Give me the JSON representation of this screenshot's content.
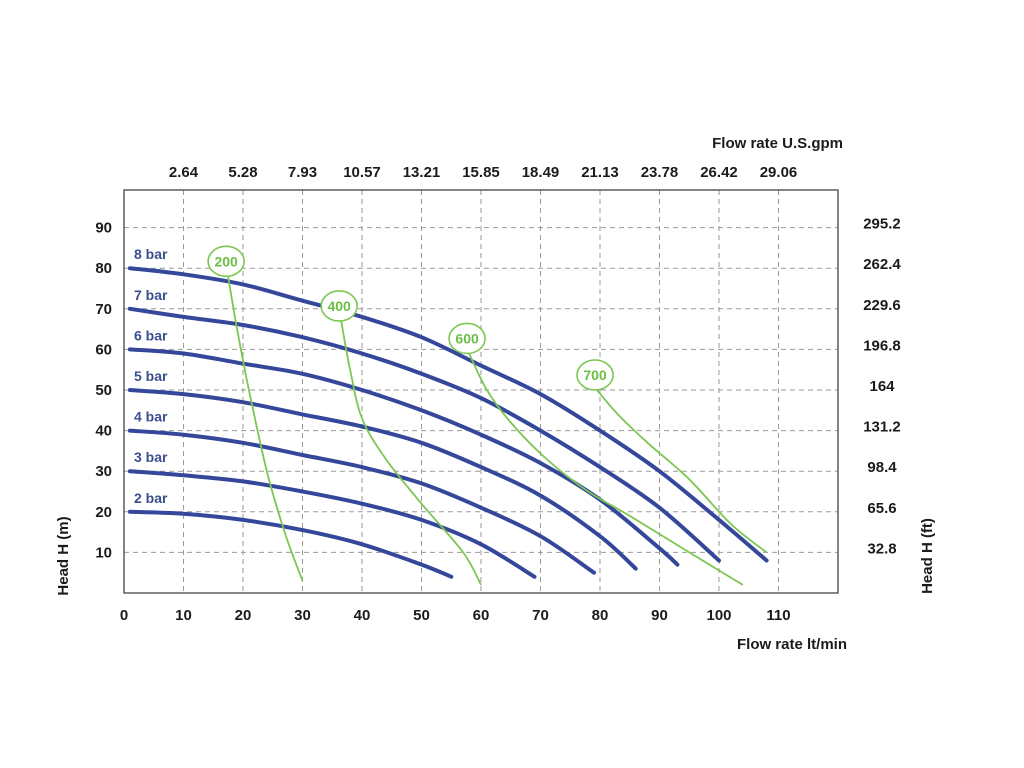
{
  "chart_data": {
    "type": "line",
    "xlabel": "Flow rate  lt/min",
    "x2label": "Flow rate U.S.gpm",
    "ylabel": "Head H (m)",
    "y2label": "Head H (ft)",
    "xlim": [
      0,
      120
    ],
    "ylim": [
      0,
      100
    ],
    "grid": true,
    "x_ticks": [
      0,
      10,
      20,
      30,
      40,
      50,
      60,
      70,
      80,
      90,
      100,
      110
    ],
    "x2_ticks": [
      "2.64",
      "5.28",
      "7.93",
      "10.57",
      "13.21",
      "15.85",
      "18.49",
      "21.13",
      "23.78",
      "26.42",
      "29.06"
    ],
    "y_ticks": [
      10,
      20,
      30,
      40,
      50,
      60,
      70,
      80,
      90
    ],
    "y2_ticks": [
      "32.8",
      "65.6",
      "98.4",
      "131.2",
      "164",
      "196.8",
      "229.6",
      "262.4",
      "295.2"
    ],
    "colors": {
      "pressure": "#34479a",
      "speed": "#7cc653",
      "grid": "#9a9a9a",
      "frame": "#444444"
    },
    "series": [
      {
        "name": "2 bar",
        "x": [
          1,
          10,
          20,
          30,
          40,
          50,
          55
        ],
        "y": [
          20,
          19.5,
          18,
          15.5,
          12,
          7,
          4
        ]
      },
      {
        "name": "3 bar",
        "x": [
          1,
          10,
          20,
          30,
          40,
          50,
          60,
          69
        ],
        "y": [
          30,
          29,
          27.5,
          25,
          22,
          18,
          12,
          4
        ]
      },
      {
        "name": "4 bar",
        "x": [
          1,
          10,
          20,
          30,
          40,
          50,
          60,
          70,
          79
        ],
        "y": [
          40,
          39,
          37,
          34,
          31,
          27,
          21,
          14,
          5
        ]
      },
      {
        "name": "5 bar",
        "x": [
          1,
          10,
          20,
          30,
          40,
          50,
          60,
          70,
          80,
          86
        ],
        "y": [
          50,
          49,
          47,
          44,
          41,
          37,
          31,
          24,
          14,
          6
        ]
      },
      {
        "name": "6 bar",
        "x": [
          1,
          10,
          20,
          30,
          40,
          50,
          60,
          70,
          80,
          90,
          93
        ],
        "y": [
          60,
          59,
          56.5,
          54,
          50,
          45,
          39,
          32,
          23,
          11,
          7
        ]
      },
      {
        "name": "7 bar",
        "x": [
          1,
          10,
          20,
          30,
          40,
          50,
          60,
          70,
          80,
          90,
          100
        ],
        "y": [
          70,
          68,
          66,
          63,
          59,
          54,
          48,
          40,
          31,
          21,
          8
        ]
      },
      {
        "name": "8 bar",
        "x": [
          1,
          10,
          20,
          30,
          40,
          50,
          60,
          70,
          80,
          90,
          100,
          108
        ],
        "y": [
          80,
          78.5,
          76,
          72,
          68,
          63,
          56,
          49,
          40,
          30,
          18,
          8
        ]
      }
    ],
    "speed_lines": [
      {
        "name": "200",
        "x": [
          17.5,
          19,
          21,
          24,
          27,
          30
        ],
        "y": [
          78,
          65,
          50,
          30,
          15,
          3
        ]
      },
      {
        "name": "400",
        "x": [
          36.5,
          38,
          40,
          44,
          50,
          57,
          60
        ],
        "y": [
          67,
          55,
          43,
          33,
          22,
          10,
          2
        ]
      },
      {
        "name": "600",
        "x": [
          58,
          61,
          65,
          71,
          78,
          85,
          95,
          104
        ],
        "y": [
          59,
          50,
          42,
          33,
          25,
          19,
          10,
          2
        ]
      },
      {
        "name": "700",
        "x": [
          79.5,
          83,
          88,
          95,
          102,
          108
        ],
        "y": [
          50,
          44,
          37,
          28,
          17,
          10
        ]
      }
    ]
  }
}
